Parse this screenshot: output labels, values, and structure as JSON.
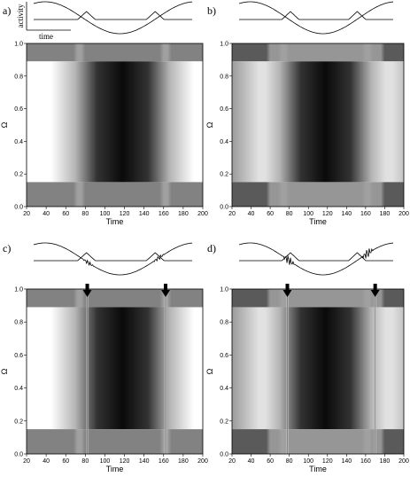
{
  "figure": {
    "inset_y_label": "activity",
    "inset_x_label": "time",
    "axis": {
      "x_label": "Time",
      "y_label": "Ω",
      "x_ticks": [
        "20",
        "40",
        "60",
        "80",
        "100",
        "120",
        "140",
        "160",
        "180",
        "200"
      ],
      "y_ticks": [
        "0.0",
        "0.2",
        "0.4",
        "0.6",
        "0.8",
        "1.0"
      ]
    },
    "panels": [
      {
        "label": "a)",
        "band_low": 0.15,
        "band_high": 0.89,
        "dark_center": 118,
        "dark_halfwidth": 38,
        "edge_soft": true,
        "arrows": [],
        "ripples": false
      },
      {
        "label": "b)",
        "band_low": 0.15,
        "band_high": 0.89,
        "dark_center": 118,
        "dark_halfwidth": 38,
        "edge_soft": false,
        "arrows": [],
        "ripples": false
      },
      {
        "label": "c)",
        "band_low": 0.15,
        "band_high": 0.89,
        "dark_center": 118,
        "dark_halfwidth": 38,
        "edge_soft": true,
        "arrows": [
          82,
          162
        ],
        "ripples": true
      },
      {
        "label": "d)",
        "band_low": 0.15,
        "band_high": 0.89,
        "dark_center": 118,
        "dark_halfwidth": 38,
        "edge_soft": false,
        "arrows": [
          78,
          170
        ],
        "ripples": true
      }
    ]
  }
}
